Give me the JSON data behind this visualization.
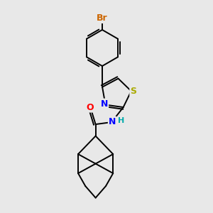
{
  "background_color": "#e8e8e8",
  "atom_colors": {
    "Br": "#CC6600",
    "N": "#0000FF",
    "O": "#FF0000",
    "S": "#AAAA00",
    "C": "#000000",
    "H": "#00AAAA"
  },
  "bond_color": "#000000",
  "bond_width": 1.4,
  "font_size_atoms": 9,
  "font_size_h": 8,
  "xlim": [
    0,
    10
  ],
  "ylim": [
    0,
    10
  ]
}
